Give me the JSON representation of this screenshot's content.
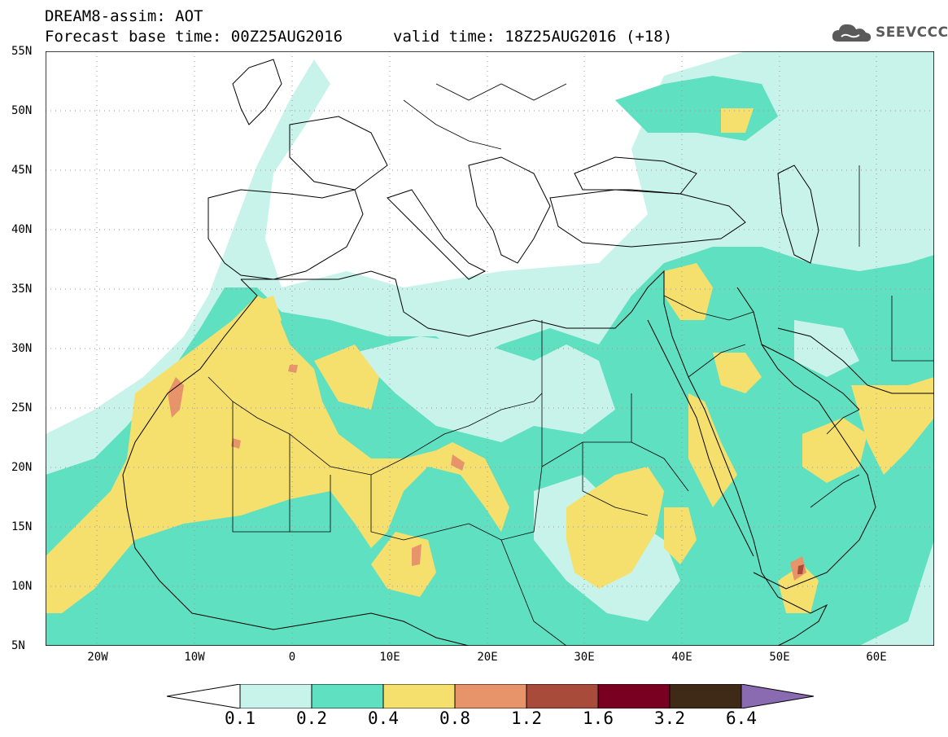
{
  "header": {
    "title": "DREAM8-assim: AOT",
    "base_time": "Forecast base time: 00Z25AUG2016",
    "valid_time": "valid time: 18Z25AUG2016 (+18)"
  },
  "logo": {
    "text": "SEEVCCC",
    "icon": "cloud-icon",
    "color": "#5a5a5a"
  },
  "map": {
    "variable": "AOT",
    "region": "North Africa / Middle East",
    "lon_range": [
      -25,
      65
    ],
    "lat_range": [
      5,
      55
    ],
    "lat_labels": [
      "55N",
      "50N",
      "45N",
      "40N",
      "35N",
      "30N",
      "25N",
      "20N",
      "15N",
      "10N",
      "5N"
    ],
    "lon_labels": [
      "20W",
      "10W",
      "0",
      "10E",
      "20E",
      "30E",
      "40E",
      "50E",
      "60E"
    ],
    "gridlines": "dotted"
  },
  "legend": {
    "levels": [
      "0.1",
      "0.2",
      "0.4",
      "0.8",
      "1.2",
      "1.6",
      "3.2",
      "6.4"
    ],
    "colors": [
      "#ffffff",
      "#c8f3ea",
      "#5fe0c0",
      "#f5e06e",
      "#e8946a",
      "#a84b3a",
      "#7a0022",
      "#3f2a18",
      "#8a6ab0"
    ]
  }
}
